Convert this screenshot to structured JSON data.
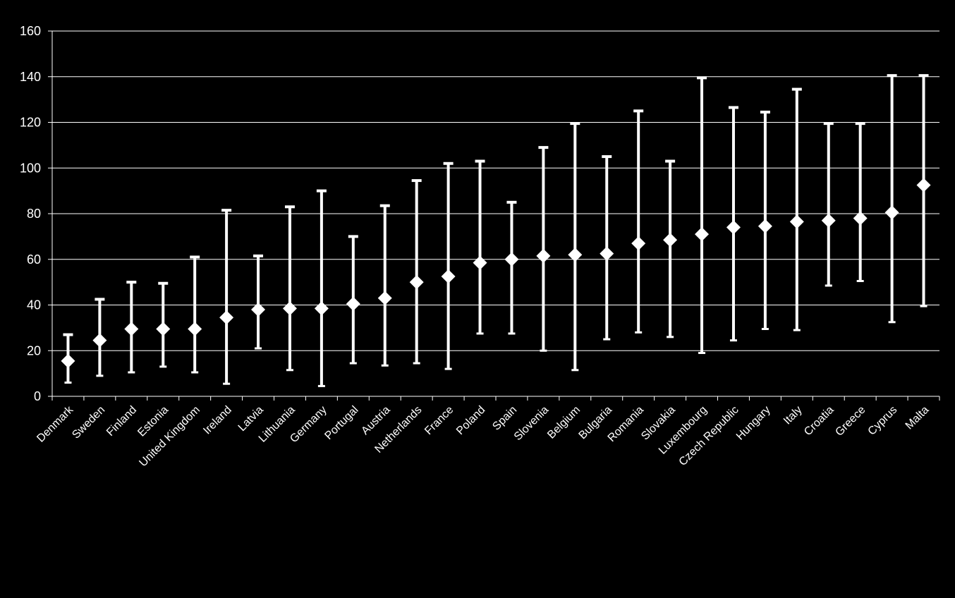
{
  "chart_data": {
    "type": "scatter",
    "subtype": "error-bar",
    "title": "",
    "xlabel": "",
    "ylabel": "",
    "ylim": [
      0,
      160
    ],
    "yticks": [
      0,
      20,
      40,
      60,
      80,
      100,
      120,
      140,
      160
    ],
    "grid": "horizontal",
    "background": "#000000",
    "marker_color": "#ffffff",
    "categories": [
      "Denmark",
      "Sweden",
      "Finland",
      "Estonia",
      "United Kingdom",
      "Ireland",
      "Latvia",
      "Lithuania",
      "Germany",
      "Portugal",
      "Austria",
      "Netherlands",
      "France",
      "Poland",
      "Spain",
      "Slovenia",
      "Belgium",
      "Bulgaria",
      "Romania",
      "Slovakia",
      "Luxembourg",
      "Czech Republic",
      "Hungary",
      "Italy",
      "Croatia",
      "Greece",
      "Cyprus",
      "Malta"
    ],
    "values": [
      15.5,
      24.5,
      29.5,
      29.5,
      29.5,
      34.5,
      38,
      38.5,
      38.5,
      40.5,
      43,
      50,
      52.5,
      58.5,
      60,
      61.5,
      62,
      62.5,
      67,
      68.5,
      71,
      74,
      74.5,
      76.5,
      77,
      78,
      80.5,
      92.5
    ],
    "lower": [
      6,
      9,
      10.5,
      13,
      10.5,
      5.5,
      21,
      11.5,
      4.5,
      14.5,
      13.5,
      14.5,
      12,
      27.5,
      27.5,
      20,
      11.5,
      25,
      28,
      26,
      19,
      24.5,
      29.5,
      29,
      48.5,
      50.5,
      32.5,
      39.5
    ],
    "upper": [
      27,
      42.5,
      50,
      49.5,
      61,
      81.5,
      61.5,
      83,
      90,
      70,
      83.5,
      94.5,
      102,
      103,
      85,
      109,
      119.5,
      105,
      125,
      103,
      139.5,
      126.5,
      124.5,
      134.5,
      119.5,
      119.5,
      140.5,
      140.5
    ]
  }
}
